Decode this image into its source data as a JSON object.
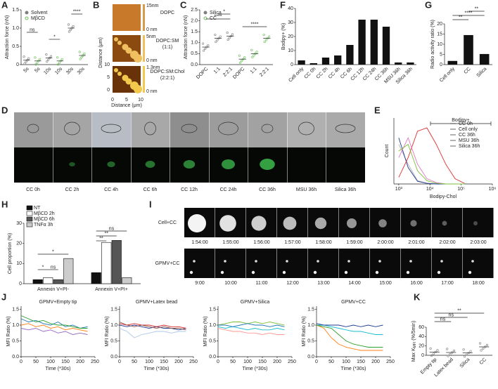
{
  "chart_data": [
    {
      "panel": "A",
      "type": "dot",
      "y_label": "Attraction force (nN)",
      "categories": [
        "5s",
        "10s",
        "30s"
      ],
      "series": [
        {
          "name": "Solvent",
          "color": "#7f7f7f",
          "values": [
            0.12,
            0.18,
            1.0
          ]
        },
        {
          "name": "MβCD",
          "color": "#6cbf5a",
          "values": [
            0.1,
            0.1,
            0.25
          ]
        }
      ],
      "ylim": [
        0,
        1.5
      ],
      "yticks": [
        0,
        0.5,
        {
          "value": 1,
          "label": "1.0"
        },
        1.5
      ],
      "annotations": [
        "ns",
        "*",
        "****"
      ]
    },
    {
      "panel": "C",
      "type": "dot",
      "y_label": "Attraction force (nN)",
      "categories": [
        "DOPC",
        "1:1",
        "2:2:1"
      ],
      "series": [
        {
          "name": "Silica",
          "color": "#7f7f7f",
          "values": [
            0.8,
            1.2,
            1.3
          ]
        },
        {
          "name": "CC",
          "color": "#6cbf5a",
          "values": [
            0.25,
            0.5,
            1.2
          ]
        }
      ],
      "ylim": [
        0,
        2.5
      ],
      "yticks": [
        {
          "value": 0,
          "label": "0.0"
        },
        0.5,
        {
          "value": 1,
          "label": "1.0"
        },
        1.5,
        {
          "value": 2,
          "label": "2.0"
        },
        2.5
      ],
      "annotations": [
        "*",
        "****",
        "****"
      ]
    },
    {
      "panel": "F",
      "type": "bar",
      "y_label": "Bodipy+ (%)",
      "color": "#111111",
      "categories": [
        "Cell only",
        "CC 0h",
        "CC 2h",
        "CC 4h",
        "CC 6h",
        "CC 12h",
        "CC 24h",
        "CC 36h",
        "MSU 36h",
        "Silica 36h"
      ],
      "values": [
        3,
        1,
        5,
        6.5,
        14,
        32,
        32,
        27,
        1.5,
        1.5
      ],
      "ylim": [
        0,
        40
      ],
      "yticks": [
        0,
        10,
        20,
        30,
        40
      ]
    },
    {
      "panel": "G",
      "type": "bar",
      "y_label": "Radio activity ratio (%)",
      "color": "#111111",
      "categories": [
        "Cell only",
        "CC",
        "Silica"
      ],
      "values": [
        1.8,
        14.5,
        5.2
      ],
      "ylim": [
        0,
        20
      ],
      "yticks": [
        0,
        5,
        10,
        15,
        20
      ],
      "annotations": [
        "**",
        "****",
        "**"
      ]
    },
    {
      "panel": "E",
      "type": "line",
      "x_label": "Bodipy-Chol",
      "y_label": "Count",
      "xlog": true,
      "x": [
        1000,
        2000,
        4000,
        8000,
        16000,
        32000,
        64000,
        128000
      ],
      "series": [
        {
          "name": "CC 0h",
          "color": "#b0b0b0",
          "values": [
            60,
            30,
            5,
            1,
            0,
            0,
            0,
            0
          ]
        },
        {
          "name": "Cell only",
          "color": "#1f3a93",
          "values": [
            70,
            25,
            4,
            1,
            0,
            0,
            0,
            0
          ]
        },
        {
          "name": "CC 36h",
          "color": "#e03030",
          "values": [
            10,
            40,
            80,
            85,
            60,
            30,
            8,
            1
          ]
        },
        {
          "name": "MSU 36h",
          "color": "#e377c2",
          "values": [
            40,
            70,
            30,
            8,
            2,
            0,
            0,
            0
          ]
        },
        {
          "name": "Silica 36h",
          "color": "#7cbf3a",
          "values": [
            50,
            60,
            20,
            5,
            1,
            0,
            0,
            0
          ]
        }
      ],
      "xlim": [
        700,
        1000000
      ],
      "ylim": [
        0,
        100
      ],
      "xticks": [
        {
          "value": 1000,
          "label": "10³"
        },
        {
          "value": 10000,
          "label": "10⁴"
        },
        {
          "value": 100000,
          "label": "10⁵"
        },
        {
          "value": 1000000,
          "label": "10⁶"
        }
      ],
      "annotations": [
        "Bodipy+"
      ]
    },
    {
      "panel": "H",
      "type": "bar",
      "y_label": "Cell proportion (%)",
      "categories": [
        "Annexin V+PI-",
        "Annexin V+PI+"
      ],
      "series": [
        {
          "name": "NT",
          "color": "#111111",
          "values": [
            2,
            5.5
          ]
        },
        {
          "name": "MβCD 2h",
          "color": "#ffffff",
          "values": [
            3,
            20.5
          ]
        },
        {
          "name": "MβCD 6h",
          "color": "#555555",
          "values": [
            2,
            21.5
          ]
        },
        {
          "name": "TNFα 3h",
          "color": "#cccccc",
          "values": [
            12.5,
            3
          ]
        }
      ],
      "ylim": [
        0,
        30
      ],
      "yticks": [
        0,
        10,
        20,
        30
      ],
      "annotations": [
        "*",
        "ns",
        "*",
        "**",
        "**",
        "ns"
      ]
    },
    {
      "type": "line",
      "title": "GPMV+Empty tip",
      "x_label": "Time (*30s)",
      "y_label": "MFI Ratio (%)",
      "x": [
        0,
        25,
        50,
        75,
        100,
        125,
        150,
        175,
        200,
        225
      ],
      "series": [
        {
          "color": "#1f77b4",
          "values": [
            1.2,
            1.1,
            1.15,
            1.05,
            1.0,
            1.1,
            0.95,
            1.0,
            0.9,
            0.95
          ]
        },
        {
          "color": "#ff7f0e",
          "values": [
            1.0,
            1.05,
            0.95,
            1.0,
            0.9,
            0.95,
            0.85,
            0.9,
            0.85,
            0.8
          ]
        },
        {
          "color": "#2ca02c",
          "values": [
            1.3,
            1.2,
            1.1,
            1.15,
            1.05,
            1.0,
            1.0,
            0.95,
            0.9,
            0.9
          ]
        },
        {
          "color": "#9467bd",
          "values": [
            0.9,
            0.85,
            0.9,
            0.8,
            0.85,
            0.75,
            0.8,
            0.7,
            0.75,
            0.7
          ]
        }
      ],
      "xlim": [
        0,
        250
      ],
      "ylim": [
        0,
        1.6
      ],
      "xticks": [
        0,
        50,
        100,
        150,
        200,
        250
      ],
      "yticks": [
        {
          "value": 0,
          "label": "0.0"
        },
        0.5,
        {
          "value": 1,
          "label": "1.0"
        },
        1.5
      ]
    },
    {
      "type": "line",
      "title": "GPMV+Latex bead",
      "x_label": "Time (*30s)",
      "y_label": "MFI Ratio (%)",
      "x": [
        0,
        25,
        50,
        75,
        100,
        125,
        150,
        175,
        200,
        225
      ],
      "series": [
        {
          "color": "#1f3a93",
          "values": [
            1.0,
            0.95,
            1.0,
            0.95,
            0.9,
            0.95,
            0.9,
            0.9,
            0.85,
            0.9
          ]
        },
        {
          "color": "#d62728",
          "values": [
            1.05,
            1.0,
            1.05,
            1.0,
            1.0,
            0.95,
            1.0,
            0.95,
            0.95,
            0.9
          ]
        },
        {
          "color": "#aec7e8",
          "values": [
            0.9,
            0.8,
            0.6,
            0.7,
            0.75,
            0.8,
            0.8,
            0.75,
            0.8,
            0.8
          ]
        },
        {
          "color": "#8c564b",
          "values": [
            1.1,
            1.0,
            0.95,
            1.0,
            0.95,
            0.9,
            0.95,
            0.9,
            0.9,
            0.85
          ]
        }
      ],
      "xlim": [
        0,
        250
      ],
      "ylim": [
        0,
        1.6
      ],
      "xticks": [
        0,
        50,
        100,
        150,
        200,
        250
      ],
      "yticks": [
        {
          "value": 0,
          "label": "0.0"
        },
        0.5,
        {
          "value": 1,
          "label": "1.0"
        },
        1.5
      ]
    },
    {
      "type": "line",
      "title": "GPMV+Silica",
      "x_label": "Time (*30s)",
      "y_label": "MFI Ratio (%)",
      "x": [
        0,
        25,
        50,
        75,
        100,
        125,
        150,
        175,
        200,
        225
      ],
      "series": [
        {
          "color": "#7cbf3a",
          "values": [
            1.0,
            1.05,
            1.1,
            1.1,
            1.05,
            1.1,
            1.05,
            1.1,
            1.05,
            1.0
          ]
        },
        {
          "color": "#17becf",
          "values": [
            0.95,
            0.9,
            0.95,
            0.9,
            0.85,
            0.9,
            0.85,
            0.85,
            0.9,
            0.85
          ]
        },
        {
          "color": "#1f77b4",
          "values": [
            1.0,
            1.0,
            0.95,
            1.0,
            1.05,
            1.0,
            1.0,
            0.95,
            1.0,
            0.95
          ]
        },
        {
          "color": "#ff9896",
          "values": [
            0.9,
            0.85,
            0.8,
            0.8,
            0.75,
            0.75,
            0.7,
            0.75,
            0.7,
            0.7
          ]
        }
      ],
      "xlim": [
        0,
        250
      ],
      "ylim": [
        0,
        1.6
      ],
      "xticks": [
        0,
        50,
        100,
        150,
        200,
        250
      ],
      "yticks": [
        {
          "value": 0,
          "label": "0.0"
        },
        0.5,
        {
          "value": 1,
          "label": "1.0"
        },
        1.5
      ]
    },
    {
      "type": "line",
      "title": "GPMV+CC",
      "x_label": "Time (*30s)",
      "y_label": "MFI Ratio (%)",
      "x": [
        0,
        25,
        50,
        75,
        100,
        125,
        150,
        175,
        200,
        225
      ],
      "series": [
        {
          "color": "#17becf",
          "values": [
            1.0,
            1.0,
            0.95,
            0.9,
            0.85,
            0.8,
            0.8,
            0.75,
            0.7,
            0.7
          ]
        },
        {
          "color": "#ff7f0e",
          "values": [
            1.0,
            0.9,
            0.6,
            0.4,
            0.3,
            0.25,
            0.2,
            0.2,
            0.2,
            0.2
          ]
        },
        {
          "color": "#2ca02c",
          "values": [
            1.0,
            0.95,
            0.9,
            0.7,
            0.5,
            0.4,
            0.35,
            0.3,
            0.3,
            0.3
          ]
        },
        {
          "color": "#1f3a93",
          "values": [
            1.05,
            1.0,
            1.0,
            1.0,
            0.95,
            1.0,
            0.95,
            1.0,
            0.95,
            1.0
          ]
        }
      ],
      "xlim": [
        0,
        250
      ],
      "ylim": [
        0,
        1.6
      ],
      "xticks": [
        0,
        50,
        100,
        150,
        200,
        250
      ],
      "yticks": [
        {
          "value": 0,
          "label": "0.0"
        },
        0.5,
        {
          "value": 1,
          "label": "1.0"
        },
        1.5
      ]
    },
    {
      "panel": "K",
      "type": "dot",
      "y_label": "Max K",
      "y_label_sub": "MFI",
      "y_label_unit": " (%/5min)",
      "categories": [
        "Empty tip",
        "Latex bead",
        "Silica",
        "CC"
      ],
      "series": [
        {
          "color": "#7f7f7f",
          "values": [
            7,
            6,
            5,
            18
          ]
        }
      ],
      "ylim": [
        0,
        60
      ],
      "yticks": [
        0,
        20,
        40,
        60
      ],
      "annotations": [
        "ns",
        "ns",
        "**"
      ]
    }
  ],
  "afm": {
    "panel": "B",
    "axis_label": "Distance (μm)",
    "ticks": [
      0,
      5,
      10
    ],
    "labels": [
      [
        "DOPC"
      ],
      [
        "DOPC:SM",
        "(1:1)"
      ],
      [
        "DOPC:SM:Chol",
        "(2:2:1)"
      ]
    ],
    "scale_labels": [
      [
        "15nm",
        "0 nm"
      ],
      [
        "5nm",
        "0 nm"
      ],
      [
        "1.3nm",
        "0 nm"
      ]
    ]
  },
  "microscopy": {
    "panel": "D",
    "labels": [
      "CC 0h",
      "CC 2h",
      "CC 4h",
      "CC 6h",
      "CC 12h",
      "CC 24h",
      "CC 36h",
      "MSU 36h",
      "Silica 36h"
    ]
  },
  "timelapse": {
    "panel": "I",
    "rows": [
      {
        "label": "Cell+CC",
        "times": [
          "1:54:00",
          "1:55:00",
          "1:56:00",
          "1:57:00",
          "1:58:00",
          "1:59:00",
          "2:00:00",
          "2:01:00",
          "2:02:00",
          "2:03:00"
        ]
      },
      {
        "label": "GPMV+CC",
        "times": [
          "9:00",
          "10:00",
          "11:00",
          "12:00",
          "13:00",
          "14:00",
          "15:00",
          "16:00",
          "17:00",
          "18:00"
        ]
      }
    ]
  },
  "panel_j": "J"
}
